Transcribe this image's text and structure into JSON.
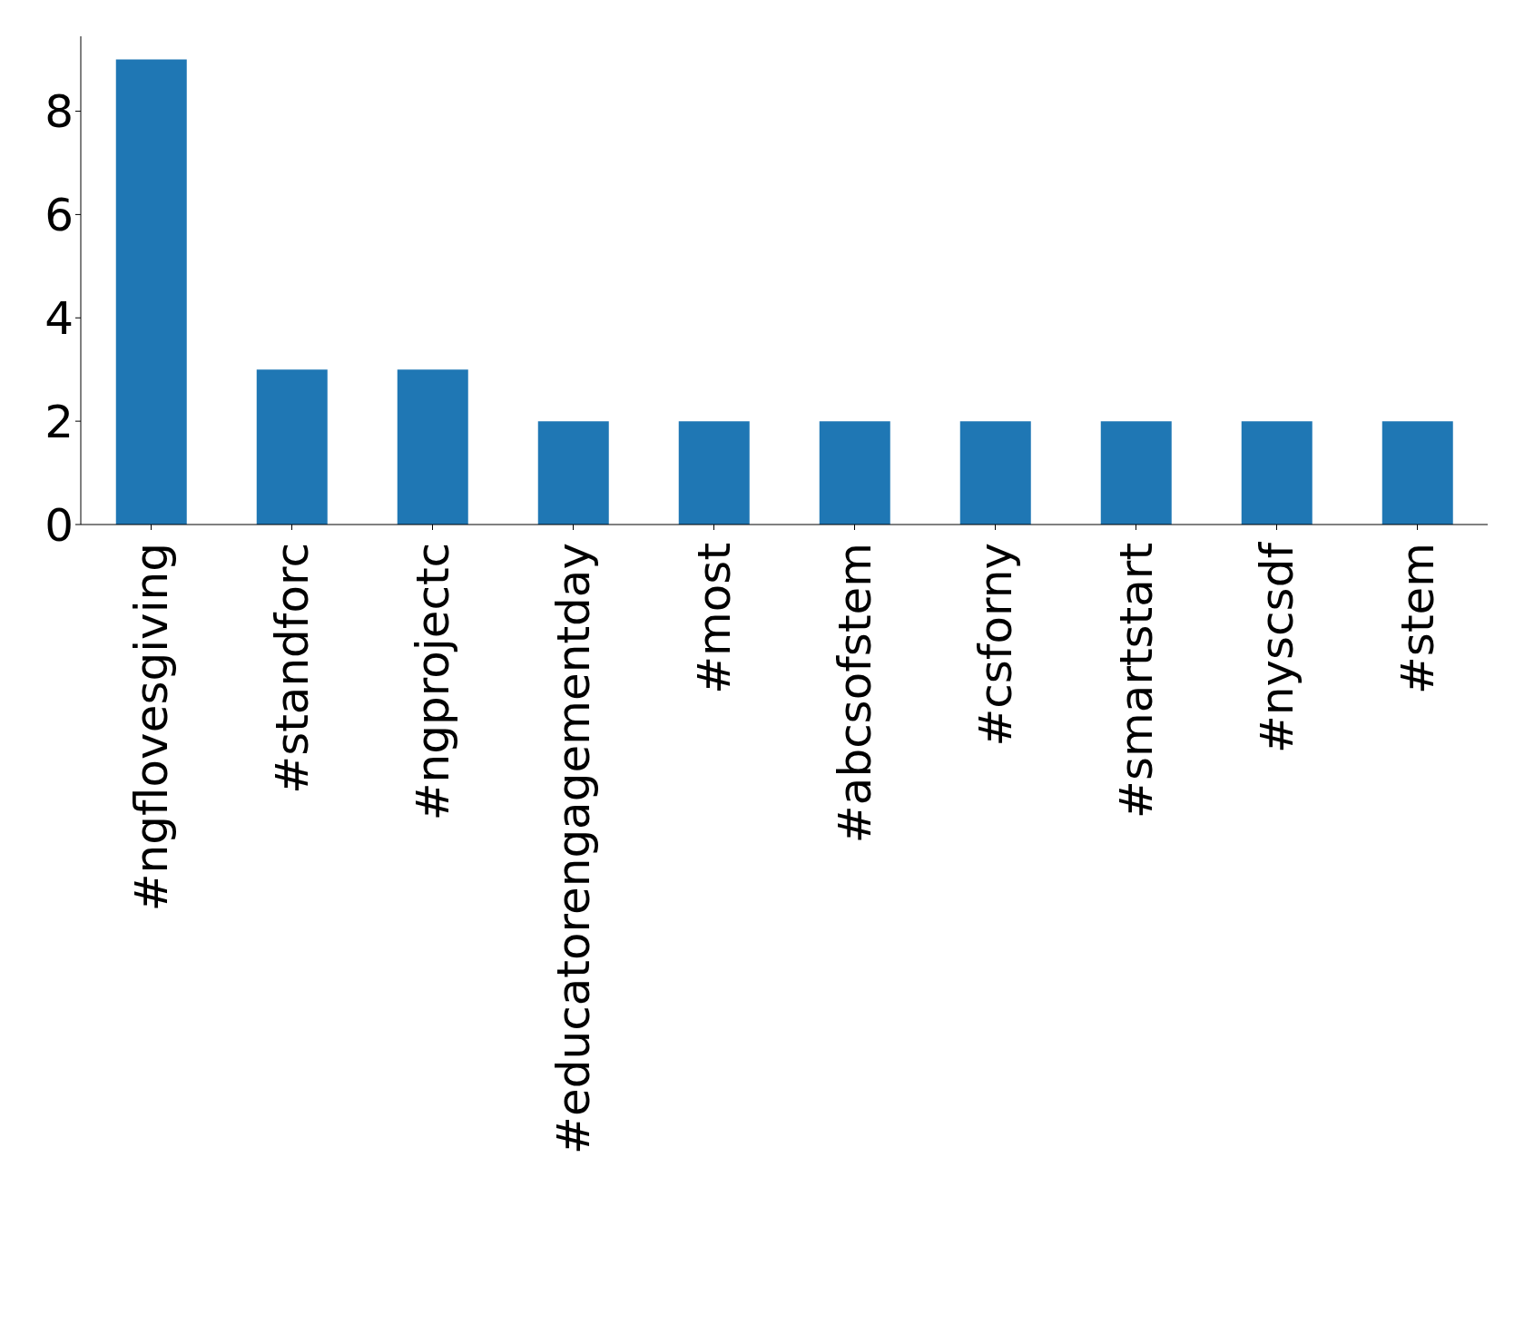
{
  "chart_data": {
    "type": "bar",
    "categories": [
      "#ngflovesgiving",
      "#standforc",
      "#ngprojectc",
      "#educatorengagementday",
      "#most",
      "#abcsofstem",
      "#csforny",
      "#smartstart",
      "#nyscsdf",
      "#stem"
    ],
    "values": [
      9,
      3,
      3,
      2,
      2,
      2,
      2,
      2,
      2,
      2
    ],
    "color": "#1f77b4",
    "ylim": [
      0,
      9.45
    ],
    "yticks": [
      0,
      2,
      4,
      6,
      8
    ],
    "grid": false,
    "legend": false
  }
}
